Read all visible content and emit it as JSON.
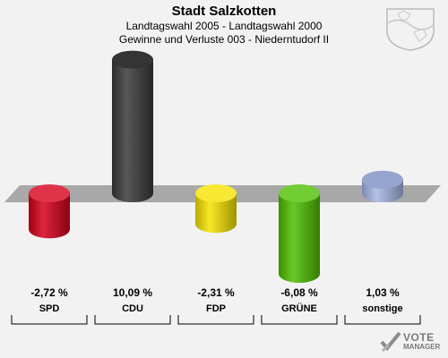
{
  "header": {
    "title": "Stadt Salzkotten",
    "subtitle_1": "Landtagswahl 2005 - Landtagswahl 2000",
    "subtitle_2": "Gewinne und Verluste 003 - Niederntudorf II"
  },
  "watermark": {
    "line1": "VOTE",
    "line2": "MANAGER"
  },
  "chart_data": {
    "type": "bar",
    "title": "Stadt Salzkotten",
    "categories": [
      "SPD",
      "CDU",
      "FDP",
      "GRÜNE",
      "sonstige"
    ],
    "values": [
      -2.72,
      10.09,
      -2.31,
      -6.08,
      1.03
    ],
    "value_labels": [
      "-2,72 %",
      "10,09 %",
      "-2,31 %",
      "-6,08 %",
      "1,03 %"
    ],
    "colors": [
      "#d6001c",
      "#3a3a3a",
      "#f5e400",
      "#4fbf00",
      "#a7b7e6"
    ],
    "ylabel": "",
    "xlabel": "",
    "ylim": [
      -8,
      11
    ],
    "grid": false,
    "legend": "none"
  }
}
